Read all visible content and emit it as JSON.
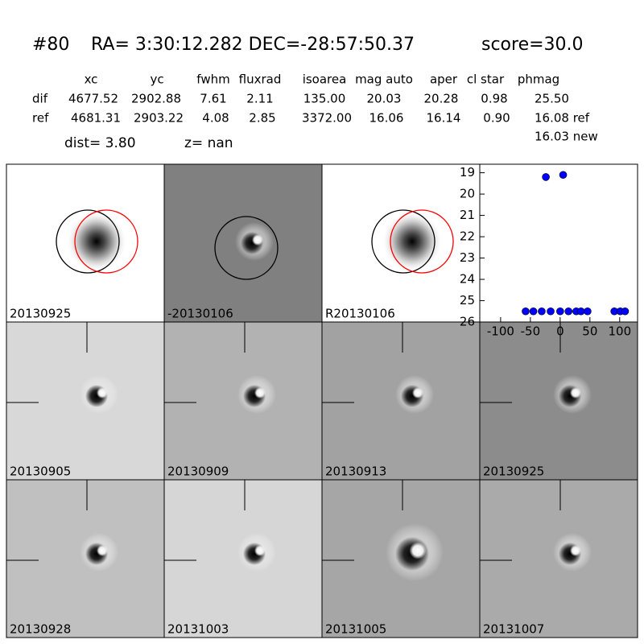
{
  "header": {
    "id": "#80",
    "coords": "RA= 3:30:12.282 DEC=-28:57:50.37",
    "score": "score=30.0"
  },
  "table": {
    "columns": [
      "xc",
      "yc",
      "fwhm",
      "fluxrad",
      "isoarea",
      "mag auto",
      "aper",
      "cl star",
      "phmag"
    ],
    "rows": [
      [
        "dif",
        "4677.52",
        "2902.88",
        "7.61",
        "2.11",
        "135.00",
        "20.03",
        "20.28",
        "0.98",
        "25.50"
      ],
      [
        "ref",
        "4681.31",
        "2903.22",
        "4.08",
        "2.85",
        "3372.00",
        "16.06",
        "16.14",
        "0.90",
        "16.08 ref"
      ]
    ],
    "extra": "16.03 new"
  },
  "dist": "dist=  3.80",
  "z": "z=   nan",
  "panels": [
    {
      "label": "20130925"
    },
    {
      "label": "-20130106"
    },
    {
      "label": "R20130106"
    },
    {
      "label": "20130905"
    },
    {
      "label": "20130909"
    },
    {
      "label": "20130913"
    },
    {
      "label": "20130925",
      "color": "#ff0000"
    },
    {
      "label": "20130928"
    },
    {
      "label": "20131003"
    },
    {
      "label": "20131005"
    },
    {
      "label": "20131007"
    }
  ],
  "chart_data": {
    "type": "scatter",
    "color": "#0000ff",
    "x": [
      -58,
      -45,
      -31,
      -16,
      0,
      14,
      27,
      35,
      46,
      91,
      101,
      109,
      -24,
      5
    ],
    "values": [
      25.5,
      25.5,
      25.5,
      25.5,
      25.5,
      25.5,
      25.5,
      25.5,
      25.5,
      25.5,
      25.5,
      25.5,
      19.2,
      19.1
    ],
    "xlim": [
      -135,
      130
    ],
    "ylim": [
      18.6,
      26
    ],
    "invert_y": true,
    "xticks": [
      -100,
      -50,
      0,
      50,
      100
    ],
    "yticks": [
      19,
      20,
      21,
      22,
      23,
      24,
      25,
      26
    ]
  }
}
